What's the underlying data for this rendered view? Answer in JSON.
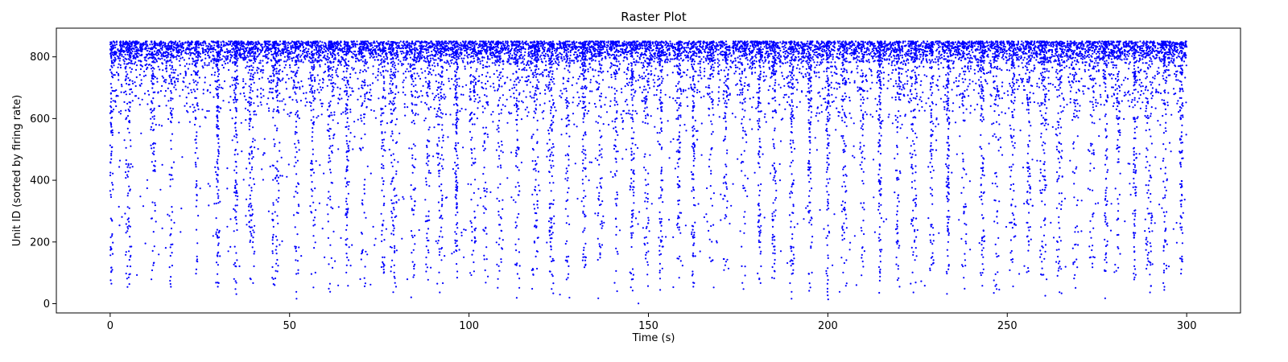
{
  "chart_data": {
    "type": "scatter",
    "title": "Raster Plot",
    "xlabel": "Time (s)",
    "ylabel": "Unit ID (sorted by firing rate)",
    "xlim": [
      -15,
      315
    ],
    "ylim": [
      -30,
      893
    ],
    "xticks": [
      0,
      50,
      100,
      150,
      200,
      250,
      300
    ],
    "yticks": [
      0,
      200,
      400,
      600,
      800
    ],
    "x_range": [
      0,
      300
    ],
    "unit_count": 850,
    "marker_color": "#0000ff",
    "grid": false,
    "burst_times": [
      0.3,
      5,
      12,
      17,
      24,
      30,
      35,
      39.5,
      46,
      52,
      56.5,
      61.5,
      66,
      70.5,
      76,
      79,
      84.5,
      88.5,
      92,
      96.5,
      101,
      104.5,
      108.5,
      113.5,
      118.5,
      123,
      127.5,
      132,
      136.5,
      141,
      145.5,
      149.5,
      153.5,
      158.5,
      162.5,
      167.5,
      171.5,
      176.5,
      181,
      185,
      190,
      195,
      200,
      204.5,
      209.5,
      214.5,
      219.5,
      224,
      229,
      233.5,
      238,
      243,
      247,
      251.5,
      256,
      260,
      264.5,
      269,
      273.5,
      277.5,
      281,
      285.5,
      289.5,
      294,
      298.5
    ]
  }
}
